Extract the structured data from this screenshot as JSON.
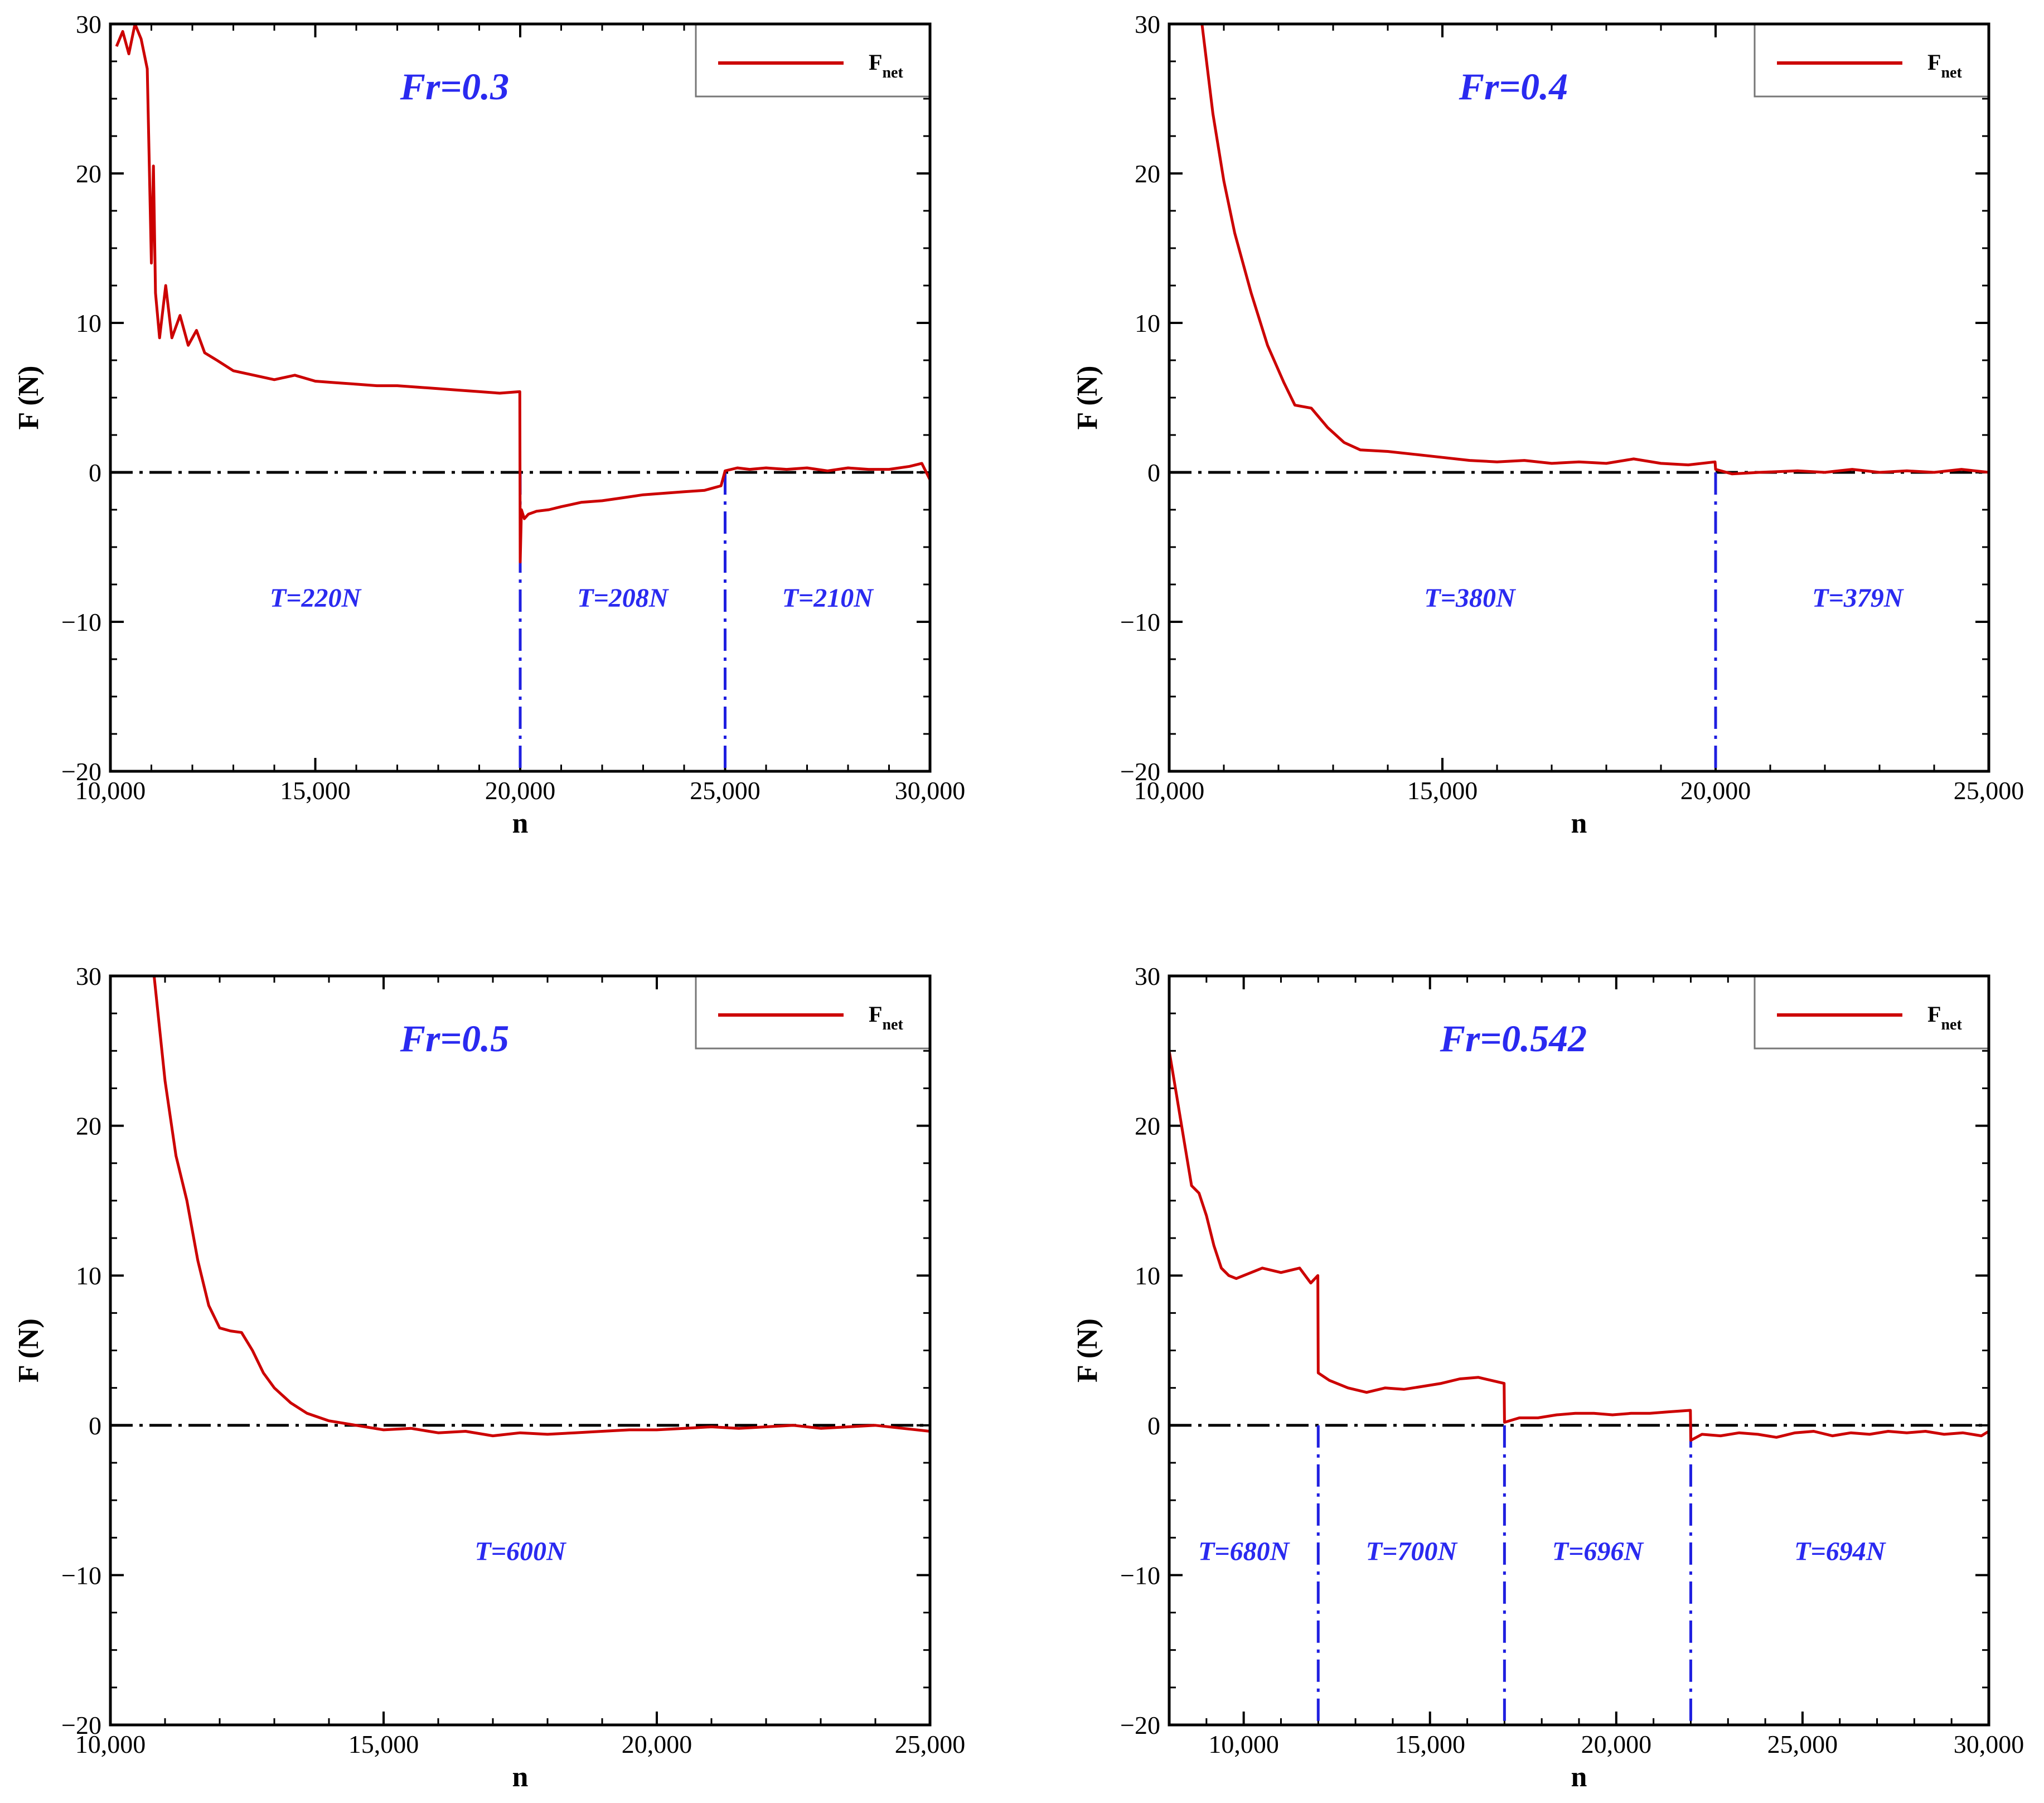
{
  "figure": {
    "panels": [
      {
        "id": "fr03",
        "title": "Fr=0.3",
        "xlabel": "n",
        "ylabel": "F (N)",
        "xlim": [
          10000,
          30000
        ],
        "ylim": [
          -20,
          30
        ],
        "xticks": [
          "10,000",
          "15,000",
          "20,000",
          "25,000",
          "30,000"
        ],
        "yticks": [
          "−20",
          "−10",
          "0",
          "10",
          "20",
          "30"
        ],
        "legend": {
          "label": "F",
          "sub": "net"
        },
        "tension_labels": [
          "T=220N",
          "T=208N",
          "T=210N"
        ]
      },
      {
        "id": "fr04",
        "title": "Fr=0.4",
        "xlabel": "n",
        "ylabel": "F (N)",
        "xlim": [
          10000,
          25000
        ],
        "ylim": [
          -20,
          30
        ],
        "xticks": [
          "10,000",
          "15,000",
          "20,000",
          "25,000"
        ],
        "yticks": [
          "−20",
          "−10",
          "0",
          "10",
          "20",
          "30"
        ],
        "legend": {
          "label": "F",
          "sub": "net"
        },
        "tension_labels": [
          "T=380N",
          "T=379N"
        ]
      },
      {
        "id": "fr05",
        "title": "Fr=0.5",
        "xlabel": "n",
        "ylabel": "F (N)",
        "xlim": [
          10000,
          25000
        ],
        "ylim": [
          -20,
          30
        ],
        "xticks": [
          "10,000",
          "15,000",
          "20,000",
          "25,000"
        ],
        "yticks": [
          "−20",
          "−10",
          "0",
          "10",
          "20",
          "30"
        ],
        "legend": {
          "label": "F",
          "sub": "net"
        },
        "tension_labels": [
          "T=600N"
        ]
      },
      {
        "id": "fr0542",
        "title": "Fr=0.542",
        "xlabel": "n",
        "ylabel": "F (N)",
        "xlim": [
          8000,
          30000
        ],
        "ylim": [
          -20,
          30
        ],
        "xticks": [
          "10,000",
          "15,000",
          "20,000",
          "25,000",
          "30,000"
        ],
        "yticks": [
          "−20",
          "−10",
          "0",
          "10",
          "20",
          "30"
        ],
        "legend": {
          "label": "F",
          "sub": "net"
        },
        "tension_labels": [
          "T=680N",
          "T=700N",
          "T=696N",
          "T=694N"
        ]
      }
    ]
  },
  "chart_data": [
    {
      "type": "line",
      "title": "Fr=0.3",
      "xlabel": "n",
      "ylabel": "F (N)",
      "xlim": [
        10000,
        30000
      ],
      "ylim": [
        -20,
        30
      ],
      "xticks": [
        10000,
        15000,
        20000,
        25000,
        30000
      ],
      "yticks": [
        -20,
        -10,
        0,
        10,
        20,
        30
      ],
      "legend": [
        "Fnet"
      ],
      "legend_position": "top-right",
      "reference_line_y": 0,
      "series": [
        {
          "name": "Fnet",
          "color": "#cc0000",
          "x": [
            10150,
            10300,
            10450,
            10600,
            10750,
            10900,
            11000,
            11050,
            11100,
            11200,
            11350,
            11500,
            11700,
            11900,
            12100,
            12300,
            12600,
            13000,
            13500,
            14000,
            14500,
            15000,
            15500,
            16000,
            16500,
            17000,
            17500,
            18000,
            18500,
            19000,
            19500,
            19990,
            20000,
            20030,
            20100,
            20200,
            20400,
            20700,
            21000,
            21500,
            22000,
            22500,
            23000,
            23500,
            24000,
            24500,
            24900,
            25000,
            25300,
            25600,
            26000,
            26500,
            27000,
            27500,
            28000,
            28500,
            29000,
            29500,
            29800,
            30000
          ],
          "y": [
            28.5,
            29.5,
            28,
            30,
            29,
            27,
            14,
            20.5,
            12,
            9,
            12.5,
            9,
            10.5,
            8.5,
            9.5,
            8,
            7.5,
            6.8,
            6.5,
            6.2,
            6.5,
            6.1,
            6.0,
            5.9,
            5.8,
            5.8,
            5.7,
            5.6,
            5.5,
            5.4,
            5.3,
            5.4,
            -6,
            -2.5,
            -3.1,
            -2.8,
            -2.6,
            -2.5,
            -2.3,
            -2.0,
            -1.9,
            -1.7,
            -1.5,
            -1.4,
            -1.3,
            -1.2,
            -0.9,
            0.1,
            0.3,
            0.2,
            0.3,
            0.2,
            0.3,
            0.1,
            0.3,
            0.2,
            0.2,
            0.4,
            0.6,
            -0.5
          ]
        }
      ],
      "vlines_x": [
        20000,
        25000
      ],
      "annotations": [
        {
          "text": "T=220N",
          "x": 15000,
          "y": -9
        },
        {
          "text": "T=208N",
          "x": 22500,
          "y": -9
        },
        {
          "text": "T=210N",
          "x": 27500,
          "y": -9
        }
      ]
    },
    {
      "type": "line",
      "title": "Fr=0.4",
      "xlabel": "n",
      "ylabel": "F (N)",
      "xlim": [
        10000,
        25000
      ],
      "ylim": [
        -20,
        30
      ],
      "xticks": [
        10000,
        15000,
        20000,
        25000
      ],
      "yticks": [
        -20,
        -10,
        0,
        10,
        20,
        30
      ],
      "legend": [
        "Fnet"
      ],
      "legend_position": "top-right",
      "reference_line_y": 0,
      "series": [
        {
          "name": "Fnet",
          "color": "#cc0000",
          "x": [
            10600,
            10800,
            11000,
            11200,
            11500,
            11800,
            12100,
            12300,
            12600,
            12900,
            13200,
            13500,
            14000,
            14500,
            15000,
            15500,
            16000,
            16500,
            17000,
            17500,
            18000,
            18500,
            19000,
            19500,
            19990,
            20000,
            20300,
            20800,
            21500,
            22000,
            22500,
            23000,
            23500,
            24000,
            24500,
            25000
          ],
          "y": [
            30,
            24,
            19.5,
            16,
            12,
            8.5,
            6,
            4.5,
            4.3,
            3,
            2,
            1.5,
            1.4,
            1.2,
            1.0,
            0.8,
            0.7,
            0.8,
            0.6,
            0.7,
            0.6,
            0.9,
            0.6,
            0.5,
            0.7,
            0.2,
            -0.1,
            0.0,
            0.1,
            0.0,
            0.2,
            0.0,
            0.1,
            0.0,
            0.2,
            0.0
          ]
        }
      ],
      "vlines_x": [
        20000
      ],
      "annotations": [
        {
          "text": "T=380N",
          "x": 15500,
          "y": -9
        },
        {
          "text": "T=379N",
          "x": 22600,
          "y": -9
        }
      ]
    },
    {
      "type": "line",
      "title": "Fr=0.5",
      "xlabel": "n",
      "ylabel": "F (N)",
      "xlim": [
        10000,
        25000
      ],
      "ylim": [
        -20,
        30
      ],
      "xticks": [
        10000,
        15000,
        20000,
        25000
      ],
      "yticks": [
        -20,
        -10,
        0,
        10,
        20,
        30
      ],
      "legend": [
        "Fnet"
      ],
      "legend_position": "top-right",
      "reference_line_y": 0,
      "series": [
        {
          "name": "Fnet",
          "color": "#cc0000",
          "x": [
            10800,
            11000,
            11200,
            11400,
            11600,
            11800,
            12000,
            12200,
            12400,
            12600,
            12800,
            13000,
            13300,
            13600,
            14000,
            14500,
            15000,
            15500,
            16000,
            16500,
            17000,
            17500,
            18000,
            18500,
            19000,
            19500,
            20000,
            20500,
            21000,
            21500,
            22000,
            22500,
            23000,
            23500,
            24000,
            24500,
            25000
          ],
          "y": [
            30,
            23,
            18,
            15,
            11,
            8,
            6.5,
            6.3,
            6.2,
            5,
            3.5,
            2.5,
            1.5,
            0.8,
            0.3,
            0.0,
            -0.3,
            -0.2,
            -0.5,
            -0.4,
            -0.7,
            -0.5,
            -0.6,
            -0.5,
            -0.4,
            -0.3,
            -0.3,
            -0.2,
            -0.1,
            -0.2,
            -0.1,
            0.0,
            -0.2,
            -0.1,
            0.0,
            -0.2,
            -0.4
          ]
        }
      ],
      "vlines_x": [],
      "annotations": [
        {
          "text": "T=600N",
          "x": 17500,
          "y": -9
        }
      ]
    },
    {
      "type": "line",
      "title": "Fr=0.542",
      "xlabel": "n",
      "ylabel": "F (N)",
      "xlim": [
        8000,
        30000
      ],
      "ylim": [
        -20,
        30
      ],
      "xticks": [
        10000,
        15000,
        20000,
        25000,
        30000
      ],
      "yticks": [
        -20,
        -10,
        0,
        10,
        20,
        30
      ],
      "legend": [
        "Fnet"
      ],
      "legend_position": "top-right",
      "reference_line_y": 0,
      "series": [
        {
          "name": "Fnet",
          "color": "#cc0000",
          "x": [
            8000,
            8200,
            8400,
            8600,
            8800,
            9000,
            9200,
            9400,
            9600,
            9800,
            10000,
            10500,
            11000,
            11500,
            11800,
            11990,
            12000,
            12300,
            12800,
            13300,
            13800,
            14300,
            14800,
            15300,
            15800,
            16300,
            16990,
            17000,
            17400,
            17900,
            18400,
            18900,
            19400,
            19900,
            20400,
            20900,
            21400,
            21990,
            22000,
            22300,
            22800,
            23300,
            23800,
            24300,
            24800,
            25300,
            25800,
            26300,
            26800,
            27300,
            27800,
            28300,
            28800,
            29300,
            29800,
            30000
          ],
          "y": [
            25,
            22,
            19,
            16,
            15.5,
            14,
            12,
            10.5,
            10,
            9.8,
            10,
            10.5,
            10.2,
            10.5,
            9.5,
            10,
            3.5,
            3,
            2.5,
            2.2,
            2.5,
            2.4,
            2.6,
            2.8,
            3.1,
            3.2,
            2.8,
            0.2,
            0.5,
            0.5,
            0.7,
            0.8,
            0.8,
            0.7,
            0.8,
            0.8,
            0.9,
            1.0,
            -1.0,
            -0.6,
            -0.7,
            -0.5,
            -0.6,
            -0.8,
            -0.5,
            -0.4,
            -0.7,
            -0.5,
            -0.6,
            -0.4,
            -0.5,
            -0.4,
            -0.6,
            -0.5,
            -0.7,
            -0.4
          ]
        }
      ],
      "vlines_x": [
        12000,
        17000,
        22000
      ],
      "annotations": [
        {
          "text": "T=680N",
          "x": 10000,
          "y": -9
        },
        {
          "text": "T=700N",
          "x": 14500,
          "y": -9
        },
        {
          "text": "T=696N",
          "x": 19500,
          "y": -9
        },
        {
          "text": "T=694N",
          "x": 26000,
          "y": -9
        }
      ]
    }
  ]
}
